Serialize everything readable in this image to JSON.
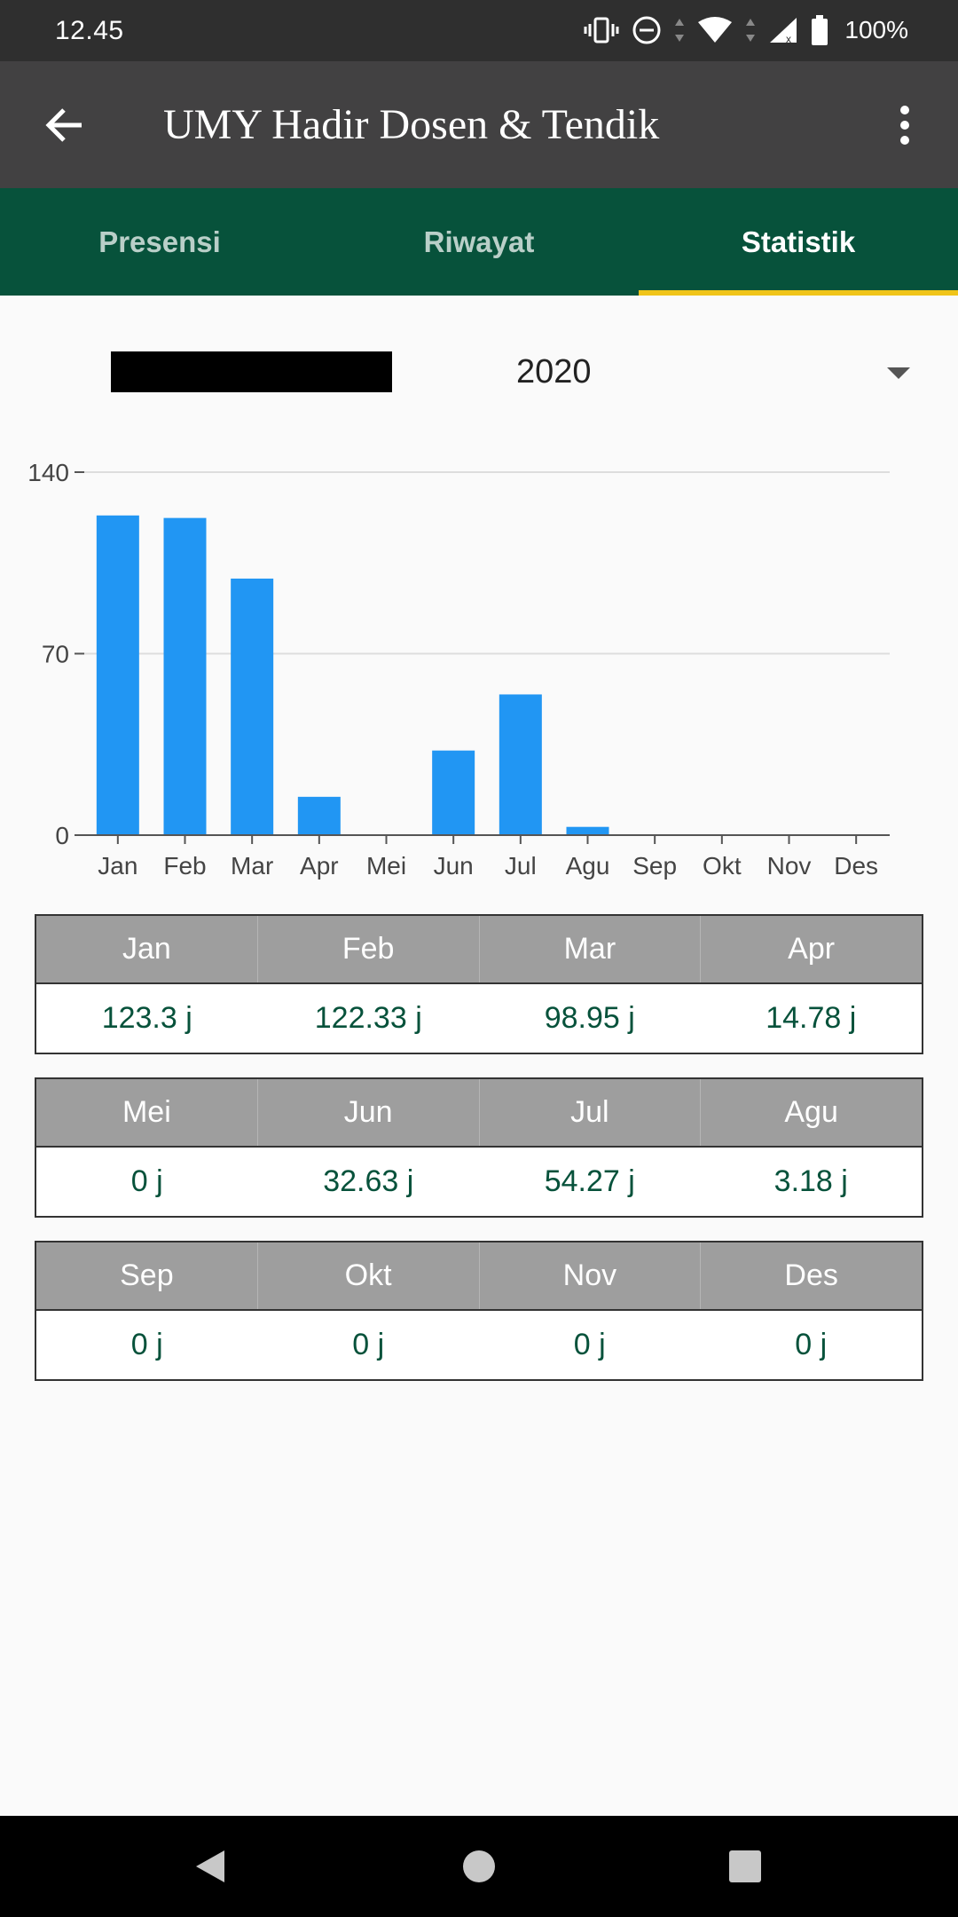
{
  "status_bar": {
    "time": "12.45",
    "battery_percent": "100%",
    "icons": [
      "vibrate-icon",
      "dnd-icon",
      "wifi-icon",
      "signal-icon",
      "battery-icon"
    ]
  },
  "app_bar": {
    "title": "UMY Hadir Dosen & Tendik",
    "back_icon": "arrow-left-icon",
    "menu_icon": "more-vert-icon"
  },
  "tabs": [
    {
      "label": "Presensi",
      "active": false
    },
    {
      "label": "Riwayat",
      "active": false
    },
    {
      "label": "Statistik",
      "active": true
    }
  ],
  "colors": {
    "app_bar": "#424142",
    "tab_bar": "#07523b",
    "tab_indicator": "#f0c419",
    "bar": "#2196f3",
    "value_text": "#07523b",
    "table_header": "#9e9e9e"
  },
  "year_selector": {
    "selected": "2020"
  },
  "chart_data": {
    "type": "bar",
    "categories": [
      "Jan",
      "Feb",
      "Mar",
      "Apr",
      "Mei",
      "Jun",
      "Jul",
      "Agu",
      "Sep",
      "Okt",
      "Nov",
      "Des"
    ],
    "values": [
      123.3,
      122.33,
      98.95,
      14.78,
      0,
      32.63,
      54.27,
      3.18,
      0,
      0,
      0,
      0
    ],
    "yticks": [
      "0",
      "70",
      "140"
    ],
    "ylim": [
      0,
      140
    ],
    "grid": true,
    "legend": "none"
  },
  "tables": [
    {
      "months": [
        "Jan",
        "Feb",
        "Mar",
        "Apr"
      ],
      "values": [
        "123.3 j",
        "122.33 j",
        "98.95 j",
        "14.78 j"
      ]
    },
    {
      "months": [
        "Mei",
        "Jun",
        "Jul",
        "Agu"
      ],
      "values": [
        "0 j",
        "32.63 j",
        "54.27 j",
        "3.18 j"
      ]
    },
    {
      "months": [
        "Sep",
        "Okt",
        "Nov",
        "Des"
      ],
      "values": [
        "0 j",
        "0 j",
        "0 j",
        "0 j"
      ]
    }
  ],
  "nav_bar": {
    "buttons": [
      "back-nav-icon",
      "home-nav-icon",
      "recents-nav-icon"
    ]
  }
}
